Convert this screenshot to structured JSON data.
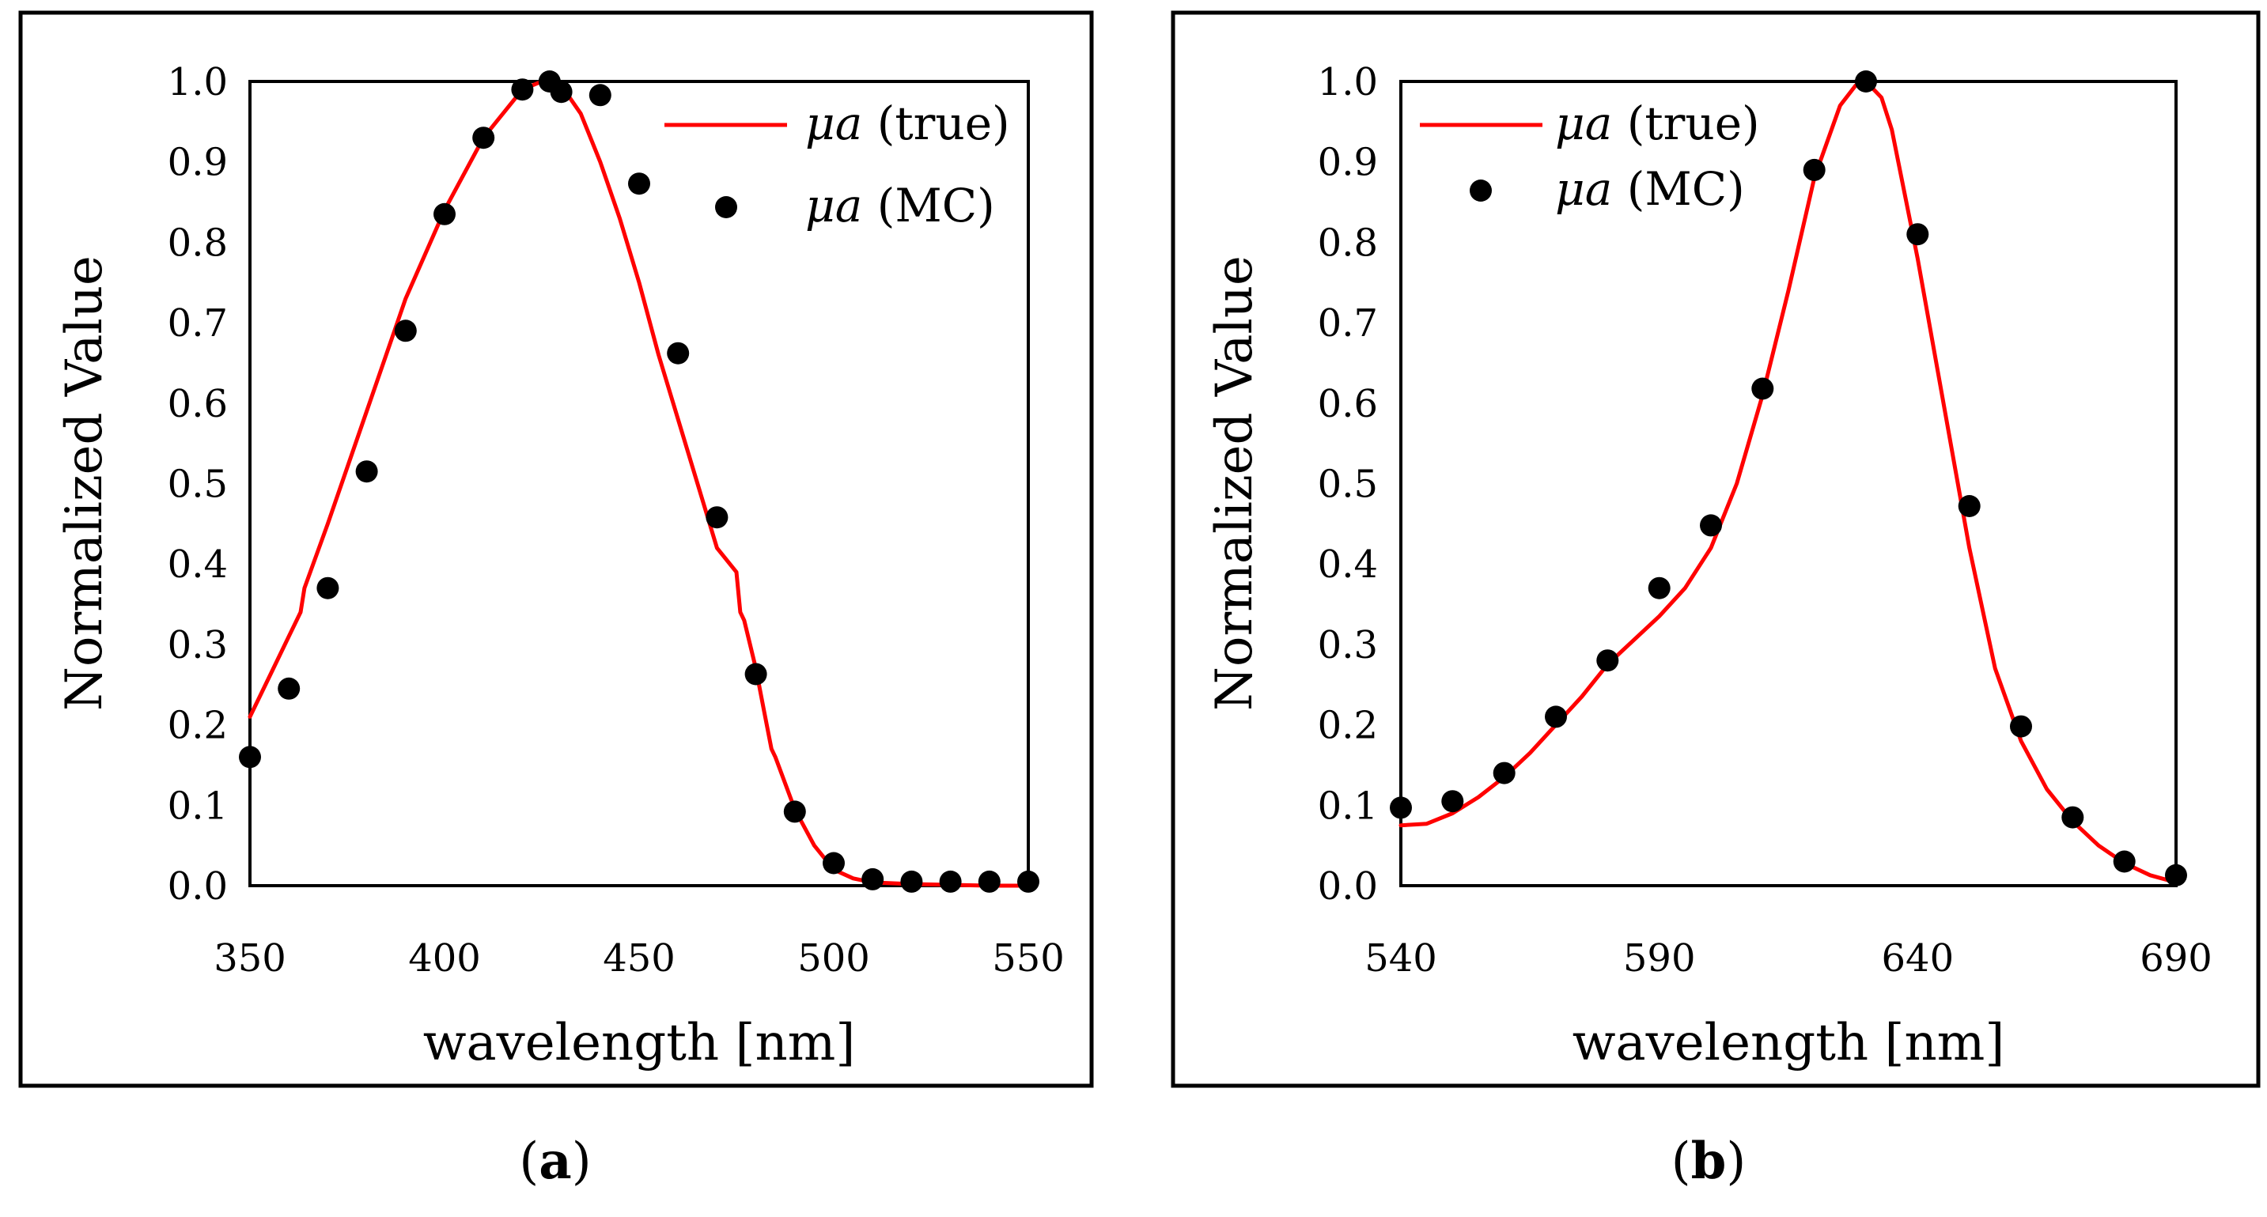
{
  "chart_data": [
    {
      "id": "a",
      "type": "line+scatter",
      "caption": "a",
      "xlabel": "wavelength [nm]",
      "ylabel": "Normalized Value",
      "xlim": [
        350,
        550
      ],
      "ylim": [
        0,
        1
      ],
      "xticks": [
        350,
        400,
        450,
        500,
        550
      ],
      "yticks": [
        0.0,
        0.1,
        0.2,
        0.3,
        0.4,
        0.5,
        0.6,
        0.7,
        0.8,
        0.9,
        1.0
      ],
      "grid": false,
      "legend_position": "top-right",
      "series": [
        {
          "name": "true",
          "legend_symbol": "μa",
          "legend_suffix": "(true)",
          "kind": "line",
          "color": "#ff0000",
          "x": [
            350,
            355,
            360,
            363,
            364,
            370,
            380,
            390,
            400,
            410,
            420,
            425,
            430,
            435,
            440,
            445,
            450,
            455,
            460,
            465,
            470,
            475,
            476,
            477,
            480,
            482,
            484,
            485,
            490,
            495,
            500,
            505,
            510,
            520,
            530,
            540,
            550
          ],
          "y": [
            0.21,
            0.26,
            0.31,
            0.34,
            0.37,
            0.45,
            0.59,
            0.73,
            0.84,
            0.93,
            0.99,
            1.0,
            0.995,
            0.96,
            0.9,
            0.83,
            0.75,
            0.66,
            0.58,
            0.5,
            0.42,
            0.39,
            0.34,
            0.33,
            0.27,
            0.22,
            0.17,
            0.16,
            0.095,
            0.05,
            0.02,
            0.009,
            0.004,
            0.002,
            0.001,
            0.0,
            0.0
          ]
        },
        {
          "name": "MC",
          "legend_symbol": "μa",
          "legend_suffix": "(MC)",
          "kind": "scatter",
          "color": "#000000",
          "x": [
            350,
            360,
            370,
            380,
            390,
            400,
            410,
            420,
            427,
            430,
            440,
            450,
            460,
            470,
            480,
            490,
            500,
            510,
            520,
            530,
            540,
            550
          ],
          "y": [
            0.16,
            0.245,
            0.37,
            0.515,
            0.69,
            0.835,
            0.93,
            0.99,
            1.0,
            0.987,
            0.983,
            0.873,
            0.662,
            0.458,
            0.263,
            0.092,
            0.028,
            0.008,
            0.005,
            0.005,
            0.005,
            0.005
          ]
        }
      ]
    },
    {
      "id": "b",
      "type": "line+scatter",
      "caption": "b",
      "xlabel": "wavelength [nm]",
      "ylabel": "Normalized Value",
      "xlim": [
        540,
        690
      ],
      "ylim": [
        0,
        1
      ],
      "xticks": [
        540,
        590,
        640,
        690
      ],
      "yticks": [
        0.0,
        0.1,
        0.2,
        0.3,
        0.4,
        0.5,
        0.6,
        0.7,
        0.8,
        0.9,
        1.0
      ],
      "grid": false,
      "legend_position": "top-left",
      "series": [
        {
          "name": "true",
          "legend_symbol": "μa",
          "legend_suffix": "(true)",
          "kind": "line",
          "color": "#ff0000",
          "x": [
            540,
            545,
            550,
            555,
            560,
            565,
            570,
            575,
            580,
            585,
            590,
            595,
            600,
            605,
            610,
            615,
            620,
            625,
            628,
            630,
            633,
            635,
            640,
            645,
            650,
            655,
            660,
            665,
            670,
            675,
            680,
            685,
            690
          ],
          "y": [
            0.075,
            0.077,
            0.09,
            0.11,
            0.135,
            0.165,
            0.2,
            0.235,
            0.275,
            0.305,
            0.335,
            0.37,
            0.42,
            0.5,
            0.61,
            0.74,
            0.88,
            0.97,
            0.995,
            1.0,
            0.98,
            0.94,
            0.78,
            0.6,
            0.42,
            0.27,
            0.18,
            0.12,
            0.08,
            0.05,
            0.028,
            0.013,
            0.004
          ]
        },
        {
          "name": "MC",
          "legend_symbol": "μa",
          "legend_suffix": "(MC)",
          "kind": "scatter",
          "color": "#000000",
          "x": [
            540,
            550,
            560,
            570,
            580,
            590,
            600,
            610,
            620,
            630,
            640,
            650,
            660,
            670,
            680,
            690
          ],
          "y": [
            0.097,
            0.105,
            0.14,
            0.21,
            0.28,
            0.37,
            0.448,
            0.618,
            0.89,
            1.0,
            0.81,
            0.472,
            0.198,
            0.085,
            0.03,
            0.013
          ]
        }
      ]
    }
  ]
}
